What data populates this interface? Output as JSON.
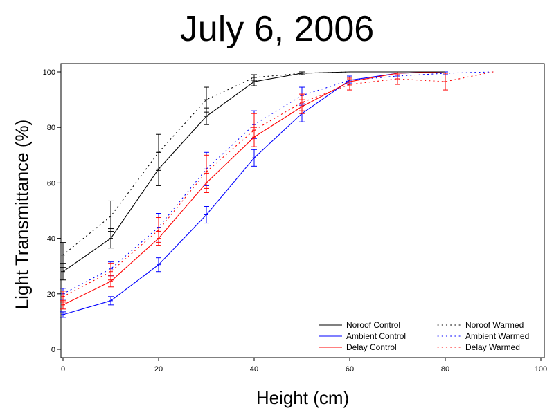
{
  "chart_data": {
    "type": "line",
    "title": "July 6, 2006",
    "xlabel": "Height (cm)",
    "ylabel": "Light Transmittance (%)",
    "xlim": [
      0,
      100
    ],
    "ylim": [
      0,
      100
    ],
    "xticks": [
      0,
      20,
      40,
      60,
      80,
      100
    ],
    "yticks": [
      0,
      20,
      40,
      60,
      80,
      100
    ],
    "grid": false,
    "legend_position": "bottom-right",
    "series": [
      {
        "name": "Noroof Control",
        "color": "#000000",
        "style": "solid",
        "x": [
          0,
          10,
          20,
          30,
          40,
          50,
          60,
          70,
          80
        ],
        "y": [
          28,
          40,
          65,
          84,
          96.5,
          99.5,
          100,
          100,
          100
        ],
        "err": [
          3,
          3.5,
          6,
          3,
          1.5,
          0.5,
          0,
          0,
          0
        ]
      },
      {
        "name": "Ambient Control",
        "color": "#0000ff",
        "style": "solid",
        "x": [
          0,
          10,
          20,
          30,
          40,
          50,
          60,
          70,
          80
        ],
        "y": [
          12.5,
          17.5,
          30.5,
          48.5,
          69,
          85,
          97,
          99.5,
          100
        ],
        "err": [
          1,
          1.5,
          2.5,
          3,
          3,
          3,
          1,
          0.5,
          0
        ]
      },
      {
        "name": "Delay Control",
        "color": "#ff0000",
        "style": "solid",
        "x": [
          0,
          10,
          20,
          30,
          40,
          50,
          60,
          70,
          80
        ],
        "y": [
          16,
          24.5,
          40,
          60,
          76.5,
          87.5,
          96.5,
          99.5,
          100
        ],
        "err": [
          1.5,
          2,
          2.5,
          3.5,
          3.5,
          2.5,
          1.5,
          0.5,
          0
        ]
      },
      {
        "name": "Noroof Warmed",
        "color": "#000000",
        "style": "dotted",
        "x": [
          0,
          10,
          20,
          30,
          40,
          50,
          60,
          70,
          80
        ],
        "y": [
          34,
          48,
          71,
          90,
          98,
          99.5,
          100,
          100,
          100
        ],
        "err": [
          4.5,
          5.5,
          6.5,
          4.5,
          1,
          0.5,
          0,
          0,
          0
        ]
      },
      {
        "name": "Ambient Warmed",
        "color": "#0000ff",
        "style": "dotted",
        "x": [
          0,
          10,
          20,
          30,
          40,
          50,
          60,
          70,
          80,
          90
        ],
        "y": [
          20,
          29,
          44,
          65,
          81,
          91.5,
          97,
          98.5,
          99.5,
          100
        ],
        "err": [
          2,
          2.5,
          5,
          6,
          5,
          3,
          1.5,
          1,
          0.5,
          0
        ]
      },
      {
        "name": "Delay Warmed",
        "color": "#ff0000",
        "style": "dotted",
        "x": [
          0,
          10,
          20,
          30,
          40,
          50,
          60,
          70,
          80,
          90
        ],
        "y": [
          19,
          28,
          43,
          64,
          79,
          89,
          95.5,
          97.5,
          96.5,
          100
        ],
        "err": [
          2,
          3,
          4.5,
          6,
          6,
          3,
          2,
          2,
          3,
          0
        ]
      }
    ]
  }
}
